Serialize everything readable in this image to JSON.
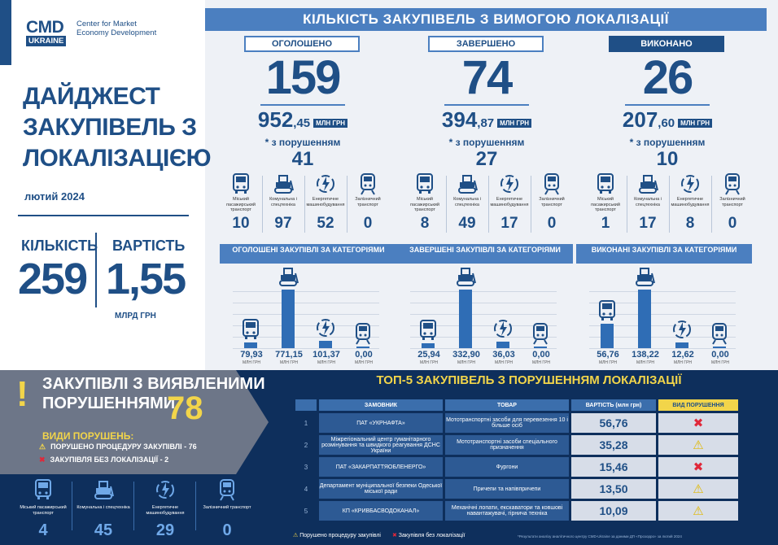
{
  "org": {
    "cmd": "CMD",
    "ukraine": "UKRAINE",
    "name": "Center for Market Economy Development"
  },
  "digest": {
    "title": "ДАЙДЖЕСТ ЗАКУПІВЕЛЬ З ЛОКАЛІЗАЦІЄЮ",
    "month": "лютий 2024"
  },
  "totals": {
    "count_label": "КІЛЬКІСТЬ",
    "count": "259",
    "value_label": "ВАРТІСТЬ",
    "value": "1,55",
    "unit": "МЛРД ГРН"
  },
  "header": "КІЛЬКІСТЬ ЗАКУПІВЕЛЬ З ВИМОГОЮ ЛОКАЛІЗАЦІЇ",
  "categories_labels": [
    "Міський пасажирський транспорт",
    "Комунальна і спецтехніка",
    "Енергетичне машинобудування",
    "Залізничний транспорт"
  ],
  "violations_label": "* з порушенням",
  "unit_mln": "МЛН ГРН",
  "columns": [
    {
      "tag": "ОГОЛОШЕНО",
      "count": "159",
      "amount_int": "952",
      "amount_dec": ",45",
      "violations": "41",
      "cat_counts": [
        "10",
        "97",
        "52",
        "0"
      ],
      "band": "ОГОЛОШЕНІ ЗАКУПІВЛІ ЗА КАТЕГОРІЯМИ",
      "cat_values": [
        "79,93",
        "771,15",
        "101,37",
        "0,00"
      ]
    },
    {
      "tag": "ЗАВЕРШЕНО",
      "count": "74",
      "amount_int": "394",
      "amount_dec": ",87",
      "violations": "27",
      "cat_counts": [
        "8",
        "49",
        "17",
        "0"
      ],
      "band": "ЗАВЕРШЕНІ ЗАКУПІВЛІ ЗА КАТЕГОРІЯМИ",
      "cat_values": [
        "25,94",
        "332,90",
        "36,03",
        "0,00"
      ]
    },
    {
      "tag": "ВИКОНАНО",
      "count": "26",
      "amount_int": "207",
      "amount_dec": ",60",
      "violations": "10",
      "cat_counts": [
        "1",
        "17",
        "8",
        "0"
      ],
      "band": "ВИКОНАНІ ЗАКУПІВЛІ ЗА КАТЕГОРІЯМИ",
      "cat_values": [
        "56,76",
        "138,22",
        "12,62",
        "0,00"
      ]
    }
  ],
  "violations_block": {
    "title_line1": "ЗАКУПІВЛІ З ВИЯВЛЕНИМИ",
    "title_line2": "ПОРУШЕННЯМИ",
    "total": "78",
    "types_heading": "ВИДИ ПОРУШЕНЬ:",
    "type1": "ПОРУШЕНО ПРОЦЕДУРУ ЗАКУПІВЛІ - 76",
    "type2": "ЗАКУПІВЛЯ БЕЗ ЛОКАЛІЗАЦІЇ - 2",
    "cat_counts": [
      "4",
      "45",
      "29",
      "0"
    ]
  },
  "top5": {
    "title": "ТОП-5 ЗАКУПІВЕЛЬ З ПОРУШЕННЯМ ЛОКАЛІЗАЦІЇ",
    "headers": [
      "ЗАМОВНИК",
      "ТОВАР",
      "ВАРТІСТЬ (млн грн)",
      "ВИД ПОРУШЕННЯ"
    ],
    "rows": [
      {
        "n": "1",
        "customer": "ПАТ «УКРНАФТА»",
        "product": "Мототранспортні засоби для перевезення 10 і більше осіб",
        "value": "56,76",
        "type": "no-localization"
      },
      {
        "n": "2",
        "customer": "Міжрегіональний центр гуманітарного розмінування та швидкого реагування ДСНС України",
        "product": "Мототранспортні засоби спеціального призначення",
        "value": "35,28",
        "type": "procedure"
      },
      {
        "n": "3",
        "customer": "ПАТ «ЗАКАРПАТТЯОБЛЕНЕРГО»",
        "product": "Фургони",
        "value": "15,46",
        "type": "no-localization"
      },
      {
        "n": "4",
        "customer": "Департамент муніципальної безпеки Одеської міської ради",
        "product": "Причепи та напівпричепи",
        "value": "13,50",
        "type": "procedure"
      },
      {
        "n": "5",
        "customer": "КП «КРИВБАСВОДОКАНАЛ»",
        "product": "Механічні лопати, екскаватори та ковшові навантажувачі, гірнича техніка",
        "value": "10,09",
        "type": "procedure"
      }
    ],
    "legend_procedure": "Порушено процедуру закупівлі",
    "legend_nolocal": "Закупівля без локалізації",
    "note": "*Результати аналізу аналітичного центру CMD-Ukraine за даними ДП «Прозорро» за лютий 2024"
  },
  "colors": {
    "primary": "#1f4f86",
    "accent": "#4b7fc0",
    "warn": "#f2d54a",
    "danger": "#e0283a"
  }
}
